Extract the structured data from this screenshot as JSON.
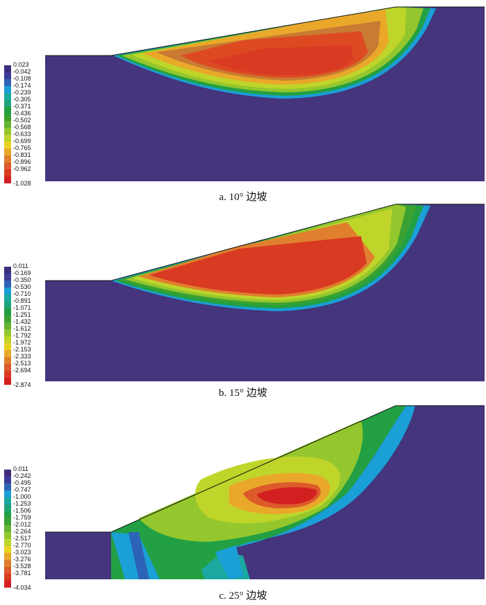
{
  "panels": [
    {
      "caption": "a. 10° 边坡",
      "legend": {
        "labels": [
          "0.023",
          "-0.042",
          "-0.108",
          "-0.174",
          "-0.239",
          "-0.305",
          "-0.371",
          "-0.436",
          "-0.502",
          "-0.568",
          "-0.633",
          "-0.699",
          "-0.765",
          "-0.831",
          "-0.896",
          "-0.962",
          "-1.028"
        ]
      }
    },
    {
      "caption": "b. 15° 边坡",
      "legend": {
        "labels": [
          "0.011",
          "-0.169",
          "-0.350",
          "-0.530",
          "-0.710",
          "-0.891",
          "-1.071",
          "-1.251",
          "-1.432",
          "-1.612",
          "-1.792",
          "-1.972",
          "-2.153",
          "-2.333",
          "-2.513",
          "-2.694",
          "-2.874"
        ]
      }
    },
    {
      "caption": "c. 25° 边坡",
      "legend": {
        "labels": [
          "0.011",
          "-0.242",
          "-0.495",
          "-0.747",
          "-1.000",
          "-1.253",
          "-1.506",
          "-1.759",
          "-2.012",
          "-2.264",
          "-2.517",
          "-2.770",
          "-3.023",
          "-3.276",
          "-3.528",
          "-3.781",
          "-4.034"
        ]
      }
    }
  ],
  "colors": {
    "background": "#44357c",
    "scale": [
      "#3e2d7d",
      "#3e3c97",
      "#2d63b6",
      "#1a9fd7",
      "#1aa8a0",
      "#1fa37a",
      "#22a043",
      "#3aa132",
      "#64b331",
      "#94c72d",
      "#bfd52a",
      "#e8d420",
      "#e9a82a",
      "#e07f2d",
      "#dd5a2a",
      "#d83a22",
      "#d21f1f"
    ]
  }
}
